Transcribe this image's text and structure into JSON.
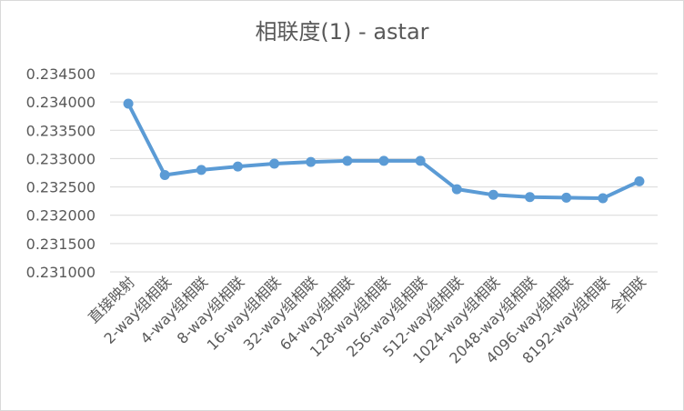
{
  "chart_data": {
    "type": "line",
    "title": "相联度(1) - astar",
    "categories": [
      "直接映射",
      "2-way组相联",
      "4-way组相联",
      "8-way组相联",
      "16-way组相联",
      "32-way组相联",
      "64-way组相联",
      "128-way组相联",
      "256-way组相联",
      "512-way组相联",
      "1024-way组相联",
      "2048-way组相联",
      "4096-way组相联",
      "8192-way组相联",
      "全相联"
    ],
    "series": [
      {
        "values": [
          0.23397,
          0.23271,
          0.2328,
          0.23286,
          0.23291,
          0.23294,
          0.23296,
          0.23296,
          0.23296,
          0.23246,
          0.23236,
          0.23232,
          0.23231,
          0.2323,
          0.2326
        ]
      }
    ],
    "ylim": [
      0.231,
      0.2345
    ],
    "yticks": [
      "0.231000",
      "0.231500",
      "0.232000",
      "0.232500",
      "0.233000",
      "0.233500",
      "0.234000",
      "0.234500"
    ],
    "grid": true,
    "colors": {
      "line": "#5b9bd5",
      "text": "#595959",
      "grid": "#d9d9d9"
    }
  }
}
